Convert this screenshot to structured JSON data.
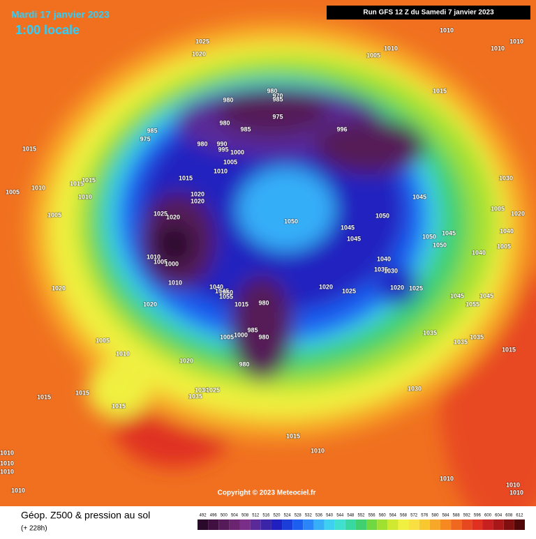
{
  "header": {
    "date": "Mardi 17 janvier 2023",
    "time": "1:00 locale",
    "run": "Run GFS 12 Z du Samedi 7 janvier 2023"
  },
  "footer": {
    "title": "Géop. Z500 & pression au sol",
    "lead": "(+ 228h)",
    "copyright": "Copyright © 2023 Meteociel.fr"
  },
  "colorbar": {
    "ticks": [
      492,
      496,
      500,
      504,
      508,
      512,
      516,
      520,
      524,
      528,
      532,
      536,
      540,
      544,
      548,
      552,
      556,
      560,
      564,
      568,
      572,
      576,
      580,
      584,
      588,
      592,
      596,
      600,
      604,
      608,
      612
    ],
    "colors": [
      "#2a0a2a",
      "#3f1040",
      "#551a58",
      "#6a2470",
      "#7a2e88",
      "#5a2a98",
      "#3a24a8",
      "#2020c0",
      "#1c3ed8",
      "#1c5ef0",
      "#2a86f8",
      "#36aef8",
      "#3ed0f0",
      "#40e0d0",
      "#38d8a0",
      "#40d070",
      "#70d840",
      "#a0e030",
      "#d0e830",
      "#f0f040",
      "#f8e040",
      "#f8c830",
      "#f8a828",
      "#f88820",
      "#f06820",
      "#e84820",
      "#e03020",
      "#c82020",
      "#a81818",
      "#801010",
      "#500808"
    ]
  },
  "pressure_labels": [
    1025,
    1020,
    1010,
    1010,
    1010,
    1005,
    1010,
    1015,
    980,
    970,
    985,
    975,
    980,
    980,
    985,
    996,
    985,
    975,
    980,
    990,
    995,
    1000,
    1005,
    1010,
    1015,
    1005,
    1010,
    1015,
    1015,
    1010,
    1005,
    1015,
    1020,
    1020,
    1030,
    1045,
    1050,
    1050,
    1045,
    1045,
    1050,
    1050,
    1045,
    1005,
    1020,
    1040,
    1005,
    1040,
    1040,
    1035,
    1030,
    1025,
    1020,
    1010,
    1005,
    1000,
    1010,
    1040,
    1045,
    1050,
    1055,
    1015,
    980,
    1020,
    1025,
    1020,
    1025,
    1045,
    1045,
    1055,
    1020,
    1020,
    985,
    1000,
    1005,
    980,
    1005,
    1010,
    1020,
    980,
    1035,
    1035,
    1035,
    1015,
    1030,
    1025,
    1035,
    1030,
    1015,
    1015,
    1015,
    1015,
    1010,
    1010,
    1010,
    1010,
    1010,
    1010,
    1010,
    1010
  ]
}
